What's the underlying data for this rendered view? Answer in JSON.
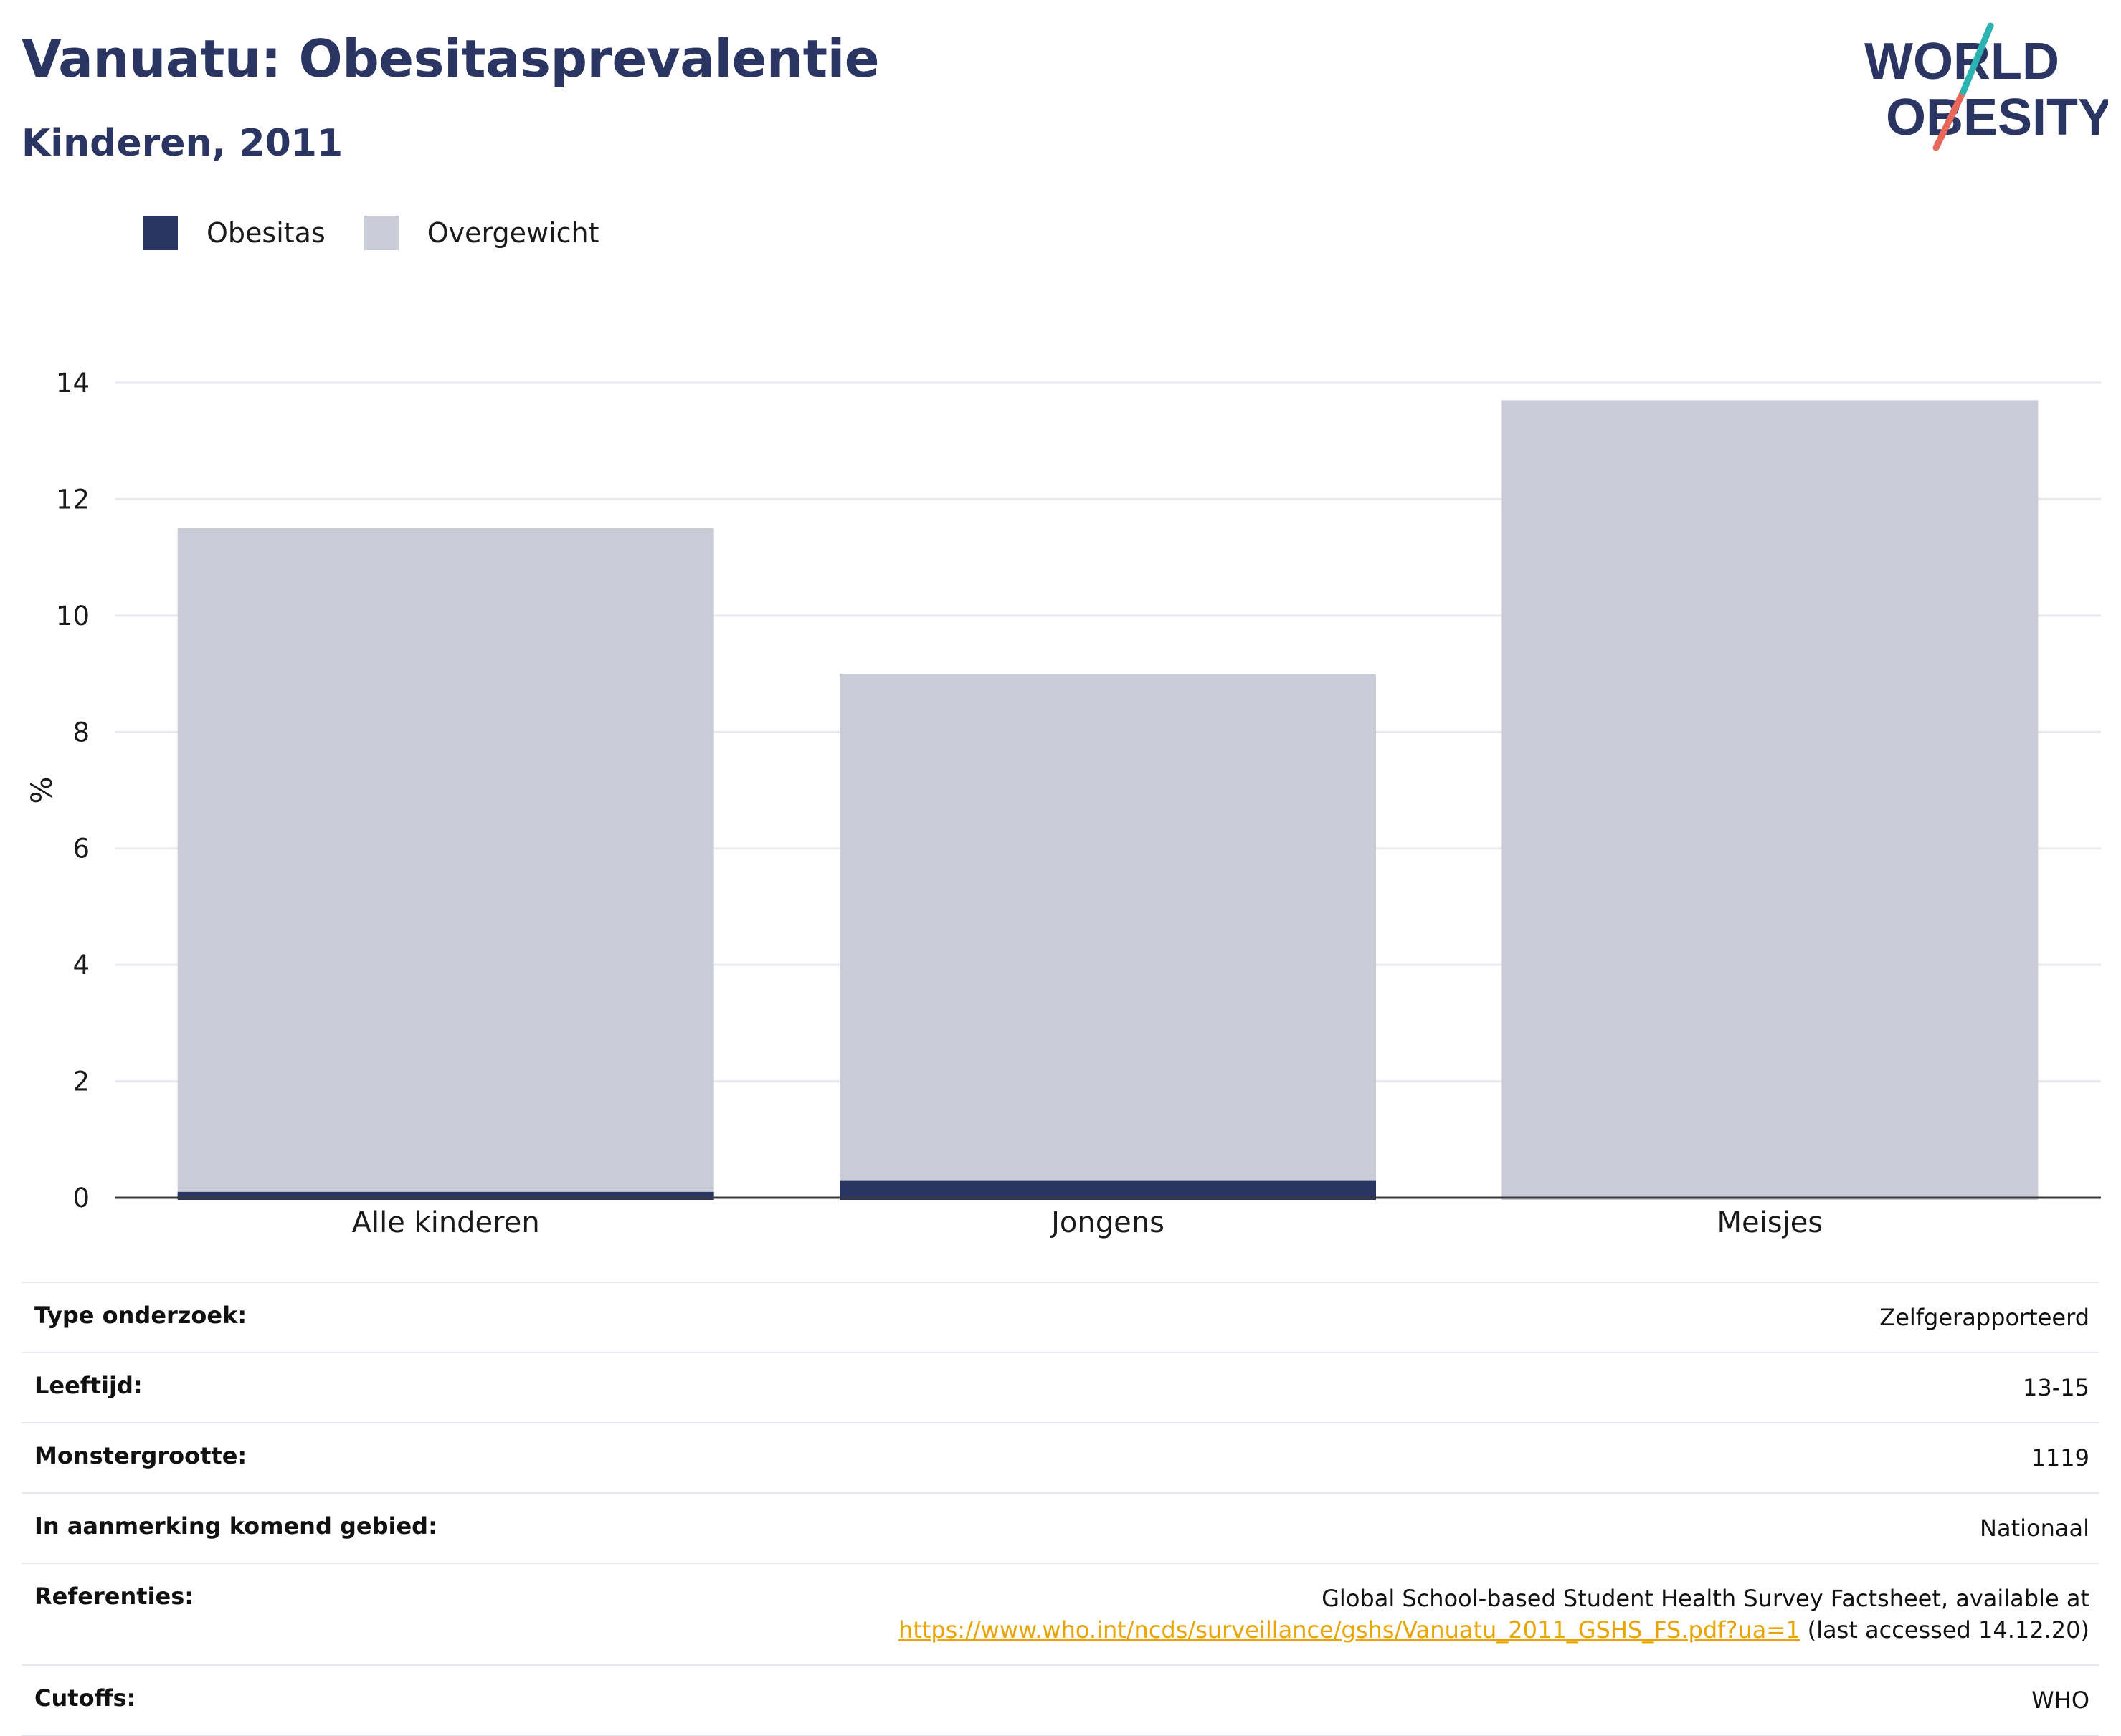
{
  "header": {
    "title": "Vanuatu: Obesitasprevalentie",
    "subtitle": "Kinderen, 2011"
  },
  "logo": {
    "text_line1": "WORLD",
    "text_line2": "OBESITY",
    "colors": {
      "text": "#2a3563",
      "slash_top": "#2bb3b1",
      "slash_bottom": "#e8675b"
    }
  },
  "legend": [
    {
      "label": "Obesitas",
      "color": "#2a3563"
    },
    {
      "label": "Overgewicht",
      "color": "#c9cbd6"
    }
  ],
  "chart_data": {
    "type": "bar",
    "stacked": false,
    "categories": [
      "Alle kinderen",
      "Jongens",
      "Meisjes"
    ],
    "series": [
      {
        "name": "Overgewicht",
        "color": "#c9cbd6",
        "values": [
          11.5,
          9.0,
          13.7
        ]
      },
      {
        "name": "Obesitas",
        "color": "#2a3563",
        "values": [
          0.1,
          0.3,
          0.0
        ]
      }
    ],
    "ylabel": "%",
    "ylim": [
      0,
      14
    ],
    "yticks": [
      0,
      2,
      4,
      6,
      8,
      10,
      12,
      14
    ],
    "grid": true,
    "legend_position": "top-left"
  },
  "metadata": [
    {
      "label": "Type onderzoek:",
      "value": "Zelfgerapporteerd"
    },
    {
      "label": "Leeftijd:",
      "value": "13-15"
    },
    {
      "label": "Monstergrootte:",
      "value": "1119"
    },
    {
      "label": "In aanmerking komend gebied:",
      "value": "Nationaal"
    },
    {
      "label": "Referenties:",
      "value_line1": "Global School-based Student Health Survey Factsheet, available at",
      "link": "https://www.who.int/ncds/surveillance/gshs/Vanuatu_2011_GSHS_FS.pdf?ua=1",
      "suffix": "(last accessed 14.12.20)"
    },
    {
      "label": "Cutoffs:",
      "value": "WHO"
    }
  ]
}
